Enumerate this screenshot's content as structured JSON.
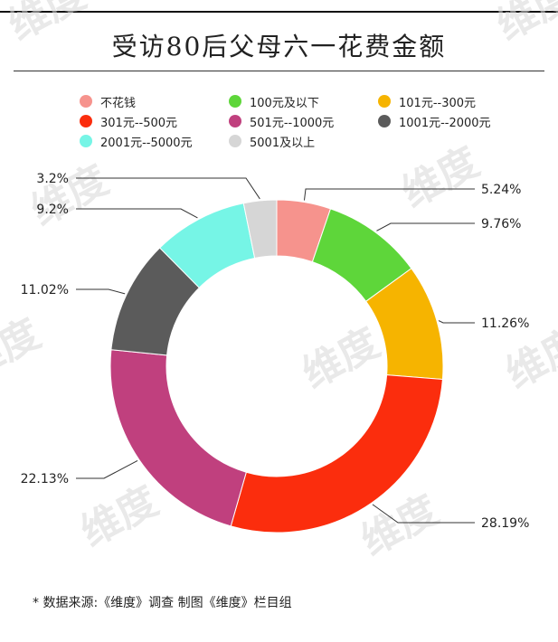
{
  "title": "受访80后父母六一花费金额",
  "source_note": "* 数据来源:《维度》调查  制图《维度》栏目组",
  "watermark": "维度",
  "chart_data": {
    "type": "pie",
    "donut": true,
    "legend_position": "top",
    "series": [
      {
        "name": "不花钱",
        "value": 5.24,
        "label": "5.24%",
        "color": "#f6938d"
      },
      {
        "name": "100元及以下",
        "value": 9.76,
        "label": "9.76%",
        "color": "#5ed63a"
      },
      {
        "name": "101元--300元",
        "value": 11.26,
        "label": "11.26%",
        "color": "#f6b400"
      },
      {
        "name": "301元--500元",
        "value": 28.19,
        "label": "28.19%",
        "color": "#fb2d0d"
      },
      {
        "name": "501元--1000元",
        "value": 22.13,
        "label": "22.13%",
        "color": "#c0407e"
      },
      {
        "name": "1001元--2000元",
        "value": 11.02,
        "label": "11.02%",
        "color": "#5b5b5b"
      },
      {
        "name": "2001元--5000元",
        "value": 9.2,
        "label": "9.2%",
        "color": "#76f5e6"
      },
      {
        "name": "5001及以上",
        "value": 3.2,
        "label": "3.2%",
        "color": "#d6d6d6"
      }
    ]
  }
}
